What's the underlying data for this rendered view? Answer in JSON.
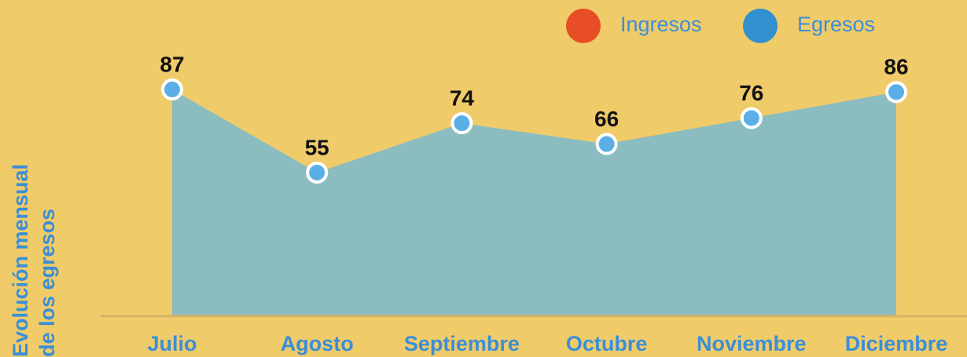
{
  "chart_data": {
    "type": "area",
    "ylabel_lines": [
      "Evolución mensual",
      "de los egresos"
    ],
    "categories": [
      "Julio",
      "Agosto",
      "Septiembre",
      "Octubre",
      "Noviembre",
      "Diciembre"
    ],
    "series": [
      {
        "name": "Egresos",
        "color": "#5ab0e6",
        "values": [
          87,
          55,
          74,
          66,
          76,
          86
        ]
      }
    ],
    "legend_entries": [
      {
        "name": "Ingresos",
        "color": "#e84e26"
      },
      {
        "name": "Egresos",
        "color": "#3390cf"
      }
    ],
    "area_color": "#8bbcc0",
    "ylim": [
      0,
      100
    ]
  }
}
